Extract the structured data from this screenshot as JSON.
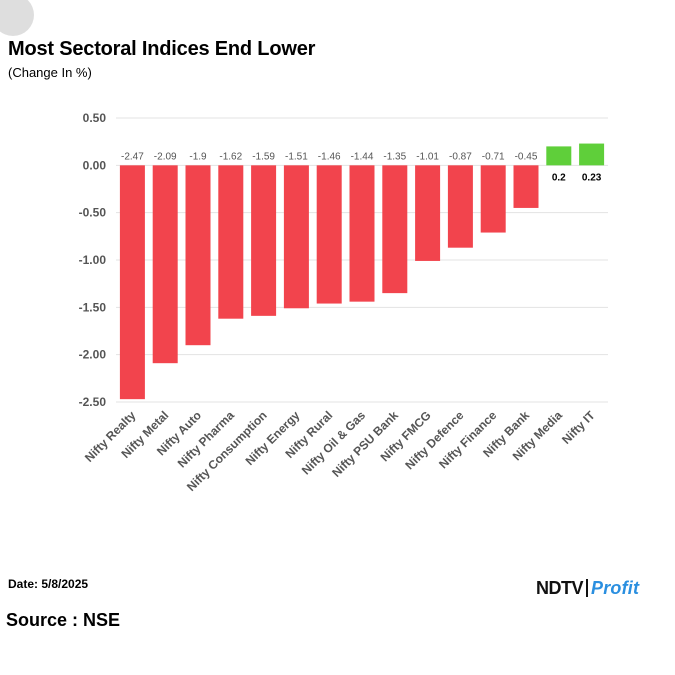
{
  "header": {
    "title": "Most Sectoral Indices End Lower",
    "subtitle": "(Change In %)"
  },
  "footer": {
    "date": "Date: 5/8/2025",
    "source": "Source : NSE"
  },
  "logo": {
    "brand": "NDTV",
    "sub": "Profit"
  },
  "colors": {
    "negative": "#f2444d",
    "positive": "#5fcf3a",
    "grid": "#e3e3e3",
    "axis_text": "#555555",
    "label_neg": "#555555",
    "label_pos": "#000000",
    "logo_accent": "#2a8fe0"
  },
  "chart_data": {
    "type": "bar",
    "title": "Most Sectoral Indices End Lower",
    "subtitle": "(Change In %)",
    "categories": [
      "Nifty Realty",
      "Nifty Metal",
      "Nifty Auto",
      "Nifty Pharma",
      "Nifty Consumption",
      "Nifty Energy",
      "Nifty Rural",
      "Nifty Oil & Gas",
      "Nifty PSU Bank",
      "Nifty FMCG",
      "Nifty Defence",
      "Nifty Finance",
      "Nifty Bank",
      "Nifty Media",
      "Nifty IT"
    ],
    "values": [
      -2.47,
      -2.09,
      -1.9,
      -1.62,
      -1.59,
      -1.51,
      -1.46,
      -1.44,
      -1.35,
      -1.01,
      -0.87,
      -0.71,
      -0.45,
      0.2,
      0.23
    ],
    "value_labels": [
      "-2.47",
      "-2.09",
      "-1.9",
      "-1.62",
      "-1.59",
      "-1.51",
      "-1.46",
      "-1.44",
      "-1.35",
      "-1.01",
      "-0.87",
      "-0.71",
      "-0.45",
      "0.2",
      "0.23"
    ],
    "yticks": [
      0.5,
      0,
      -0.5,
      -1,
      -1.5,
      -2,
      -2.5
    ],
    "ytick_labels": [
      "0.50",
      "0.00",
      "-0.50",
      "-1.00",
      "-1.50",
      "-2.00",
      "-2.50"
    ],
    "ylim": [
      -2.5,
      0.5
    ],
    "xlabel": "",
    "ylabel": "",
    "grid": true,
    "legend": "none"
  }
}
